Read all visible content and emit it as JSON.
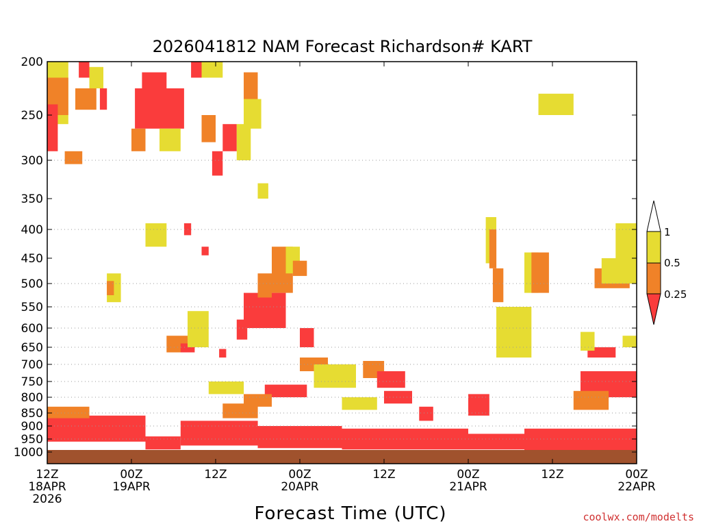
{
  "chart_data": {
    "type": "heatmap",
    "title": "2026041812 NAM Forecast Richardson# KART",
    "xlabel": "Forecast Time (UTC)",
    "ylabel": "",
    "y_levels": [
      200,
      250,
      300,
      350,
      400,
      450,
      500,
      550,
      600,
      650,
      700,
      750,
      800,
      850,
      900,
      950,
      1000
    ],
    "y_tick_labels": [
      "200",
      "250",
      "300",
      "350",
      "400",
      "450",
      "500",
      "550",
      "600",
      "650",
      "700",
      "750",
      "800",
      "850",
      "900",
      "950",
      "1000"
    ],
    "y_gridlines": [
      300,
      400,
      500,
      550,
      600,
      650,
      700,
      750,
      800,
      850,
      900,
      950
    ],
    "x_range_hours": [
      0,
      84
    ],
    "x_ticks": [
      {
        "hour": 0,
        "line1": "12Z",
        "line2": "18APR",
        "line3": "2026"
      },
      {
        "hour": 12,
        "line1": "00Z",
        "line2": "19APR",
        "line3": ""
      },
      {
        "hour": 24,
        "line1": "12Z",
        "line2": "",
        "line3": ""
      },
      {
        "hour": 36,
        "line1": "00Z",
        "line2": "20APR",
        "line3": ""
      },
      {
        "hour": 48,
        "line1": "12Z",
        "line2": "",
        "line3": ""
      },
      {
        "hour": 60,
        "line1": "00Z",
        "line2": "21APR",
        "line3": ""
      },
      {
        "hour": 72,
        "line1": "12Z",
        "line2": "",
        "line3": ""
      },
      {
        "hour": 84,
        "line1": "00Z",
        "line2": "22APR",
        "line3": ""
      }
    ],
    "colorbar": {
      "labels": [
        "1",
        "0.5",
        "0.25"
      ],
      "bins": [
        {
          "range": "> 1",
          "color": "#ffffff"
        },
        {
          "range": "0.5 - 1",
          "color": "#e6dc32"
        },
        {
          "range": "0.25 - 0.5",
          "color": "#f08228"
        },
        {
          "range": "< 0.25",
          "color": "#fa3c3c"
        }
      ]
    },
    "ground_color": "#a0522d",
    "regions": [
      {
        "category": "yellow",
        "h": [
          0,
          3
        ],
        "p": [
          200,
          260
        ]
      },
      {
        "category": "orange",
        "h": [
          0,
          3
        ],
        "p": [
          215,
          250
        ]
      },
      {
        "category": "red",
        "h": [
          0,
          1.5
        ],
        "p": [
          240,
          290
        ]
      },
      {
        "category": "red",
        "h": [
          4.5,
          6
        ],
        "p": [
          200,
          215
        ]
      },
      {
        "category": "orange",
        "h": [
          4,
          7
        ],
        "p": [
          225,
          245
        ]
      },
      {
        "category": "yellow",
        "h": [
          6,
          8
        ],
        "p": [
          205,
          225
        ]
      },
      {
        "category": "orange",
        "h": [
          2.5,
          5
        ],
        "p": [
          290,
          305
        ]
      },
      {
        "category": "red",
        "h": [
          7.5,
          8.5
        ],
        "p": [
          225,
          245
        ]
      },
      {
        "category": "red",
        "h": [
          12.5,
          19.5
        ],
        "p": [
          225,
          265
        ]
      },
      {
        "category": "red",
        "h": [
          13.5,
          17
        ],
        "p": [
          210,
          225
        ]
      },
      {
        "category": "orange",
        "h": [
          12,
          14
        ],
        "p": [
          265,
          290
        ]
      },
      {
        "category": "yellow",
        "h": [
          16,
          19
        ],
        "p": [
          265,
          290
        ]
      },
      {
        "category": "red",
        "h": [
          20.5,
          22
        ],
        "p": [
          200,
          215
        ]
      },
      {
        "category": "yellow",
        "h": [
          22,
          25
        ],
        "p": [
          200,
          215
        ]
      },
      {
        "category": "orange",
        "h": [
          22,
          24
        ],
        "p": [
          250,
          280
        ]
      },
      {
        "category": "red",
        "h": [
          23.5,
          25
        ],
        "p": [
          290,
          320
        ]
      },
      {
        "category": "red",
        "h": [
          25,
          27
        ],
        "p": [
          260,
          290
        ]
      },
      {
        "category": "yellow",
        "h": [
          27,
          29
        ],
        "p": [
          260,
          300
        ]
      },
      {
        "category": "orange",
        "h": [
          28,
          30
        ],
        "p": [
          210,
          240
        ]
      },
      {
        "category": "yellow",
        "h": [
          28,
          30.5
        ],
        "p": [
          235,
          265
        ]
      },
      {
        "category": "yellow",
        "h": [
          30,
          31.5
        ],
        "p": [
          330,
          350
        ]
      },
      {
        "category": "yellow",
        "h": [
          14,
          17
        ],
        "p": [
          390,
          430
        ]
      },
      {
        "category": "red",
        "h": [
          19.5,
          20.5
        ],
        "p": [
          390,
          410
        ]
      },
      {
        "category": "red",
        "h": [
          22,
          23
        ],
        "p": [
          430,
          445
        ]
      },
      {
        "category": "yellow",
        "h": [
          8.5,
          10.5
        ],
        "p": [
          480,
          540
        ]
      },
      {
        "category": "orange",
        "h": [
          8.5,
          9.5
        ],
        "p": [
          495,
          525
        ]
      },
      {
        "category": "orange",
        "h": [
          32,
          35
        ],
        "p": [
          430,
          520
        ]
      },
      {
        "category": "yellow",
        "h": [
          34,
          36
        ],
        "p": [
          430,
          480
        ]
      },
      {
        "category": "orange",
        "h": [
          35,
          37
        ],
        "p": [
          455,
          485
        ]
      },
      {
        "category": "red",
        "h": [
          28,
          34
        ],
        "p": [
          520,
          600
        ]
      },
      {
        "category": "red",
        "h": [
          27,
          28.5
        ],
        "p": [
          580,
          630
        ]
      },
      {
        "category": "orange",
        "h": [
          30,
          32
        ],
        "p": [
          480,
          530
        ]
      },
      {
        "category": "orange",
        "h": [
          17,
          21
        ],
        "p": [
          620,
          665
        ]
      },
      {
        "category": "red",
        "h": [
          19,
          21
        ],
        "p": [
          640,
          665
        ]
      },
      {
        "category": "yellow",
        "h": [
          20,
          23
        ],
        "p": [
          560,
          650
        ]
      },
      {
        "category": "red",
        "h": [
          24.5,
          25.5
        ],
        "p": [
          655,
          680
        ]
      },
      {
        "category": "red",
        "h": [
          36,
          38
        ],
        "p": [
          600,
          650
        ]
      },
      {
        "category": "orange",
        "h": [
          36,
          40
        ],
        "p": [
          680,
          720
        ]
      },
      {
        "category": "yellow",
        "h": [
          38,
          44
        ],
        "p": [
          700,
          770
        ]
      },
      {
        "category": "orange",
        "h": [
          45,
          48
        ],
        "p": [
          690,
          740
        ]
      },
      {
        "category": "red",
        "h": [
          47,
          51
        ],
        "p": [
          720,
          770
        ]
      },
      {
        "category": "red",
        "h": [
          31,
          37
        ],
        "p": [
          760,
          800
        ]
      },
      {
        "category": "red",
        "h": [
          48,
          52
        ],
        "p": [
          780,
          820
        ]
      },
      {
        "category": "orange",
        "h": [
          28,
          32
        ],
        "p": [
          790,
          830
        ]
      },
      {
        "category": "red",
        "h": [
          53,
          55
        ],
        "p": [
          830,
          880
        ]
      },
      {
        "category": "red",
        "h": [
          60,
          63
        ],
        "p": [
          790,
          860
        ]
      },
      {
        "category": "yellow",
        "h": [
          62.5,
          64
        ],
        "p": [
          380,
          460
        ]
      },
      {
        "category": "orange",
        "h": [
          63,
          64
        ],
        "p": [
          400,
          470
        ]
      },
      {
        "category": "orange",
        "h": [
          63.5,
          65
        ],
        "p": [
          470,
          540
        ]
      },
      {
        "category": "yellow",
        "h": [
          64,
          69
        ],
        "p": [
          550,
          680
        ]
      },
      {
        "category": "yellow",
        "h": [
          68,
          70
        ],
        "p": [
          440,
          520
        ]
      },
      {
        "category": "orange",
        "h": [
          69,
          71.5
        ],
        "p": [
          440,
          520
        ]
      },
      {
        "category": "yellow",
        "h": [
          70,
          75
        ],
        "p": [
          230,
          250
        ]
      },
      {
        "category": "yellow",
        "h": [
          81,
          84
        ],
        "p": [
          390,
          450
        ]
      },
      {
        "category": "orange",
        "h": [
          78,
          83
        ],
        "p": [
          470,
          510
        ]
      },
      {
        "category": "yellow",
        "h": [
          79,
          84
        ],
        "p": [
          450,
          500
        ]
      },
      {
        "category": "red",
        "h": [
          77,
          81
        ],
        "p": [
          650,
          680
        ]
      },
      {
        "category": "yellow",
        "h": [
          76,
          78
        ],
        "p": [
          610,
          660
        ]
      },
      {
        "category": "yellow",
        "h": [
          82,
          84
        ],
        "p": [
          620,
          650
        ]
      },
      {
        "category": "red",
        "h": [
          76,
          84
        ],
        "p": [
          720,
          800
        ]
      },
      {
        "category": "orange",
        "h": [
          75,
          80
        ],
        "p": [
          780,
          840
        ]
      },
      {
        "category": "red",
        "h": [
          0,
          14
        ],
        "p": [
          860,
          960
        ]
      },
      {
        "category": "orange",
        "h": [
          0,
          6
        ],
        "p": [
          830,
          870
        ]
      },
      {
        "category": "red",
        "h": [
          14,
          19
        ],
        "p": [
          940,
          990
        ]
      },
      {
        "category": "red",
        "h": [
          19,
          30
        ],
        "p": [
          880,
          975
        ]
      },
      {
        "category": "red",
        "h": [
          30,
          42
        ],
        "p": [
          900,
          985
        ]
      },
      {
        "category": "red",
        "h": [
          42,
          60
        ],
        "p": [
          910,
          990
        ]
      },
      {
        "category": "red",
        "h": [
          60,
          68
        ],
        "p": [
          930,
          990
        ]
      },
      {
        "category": "red",
        "h": [
          68,
          84
        ],
        "p": [
          910,
          1000
        ]
      },
      {
        "category": "yellow",
        "h": [
          23,
          28
        ],
        "p": [
          750,
          790
        ]
      },
      {
        "category": "orange",
        "h": [
          25,
          30
        ],
        "p": [
          820,
          870
        ]
      },
      {
        "category": "yellow",
        "h": [
          42,
          47
        ],
        "p": [
          800,
          840
        ]
      }
    ]
  },
  "credit": "coolwx.com/modelts"
}
